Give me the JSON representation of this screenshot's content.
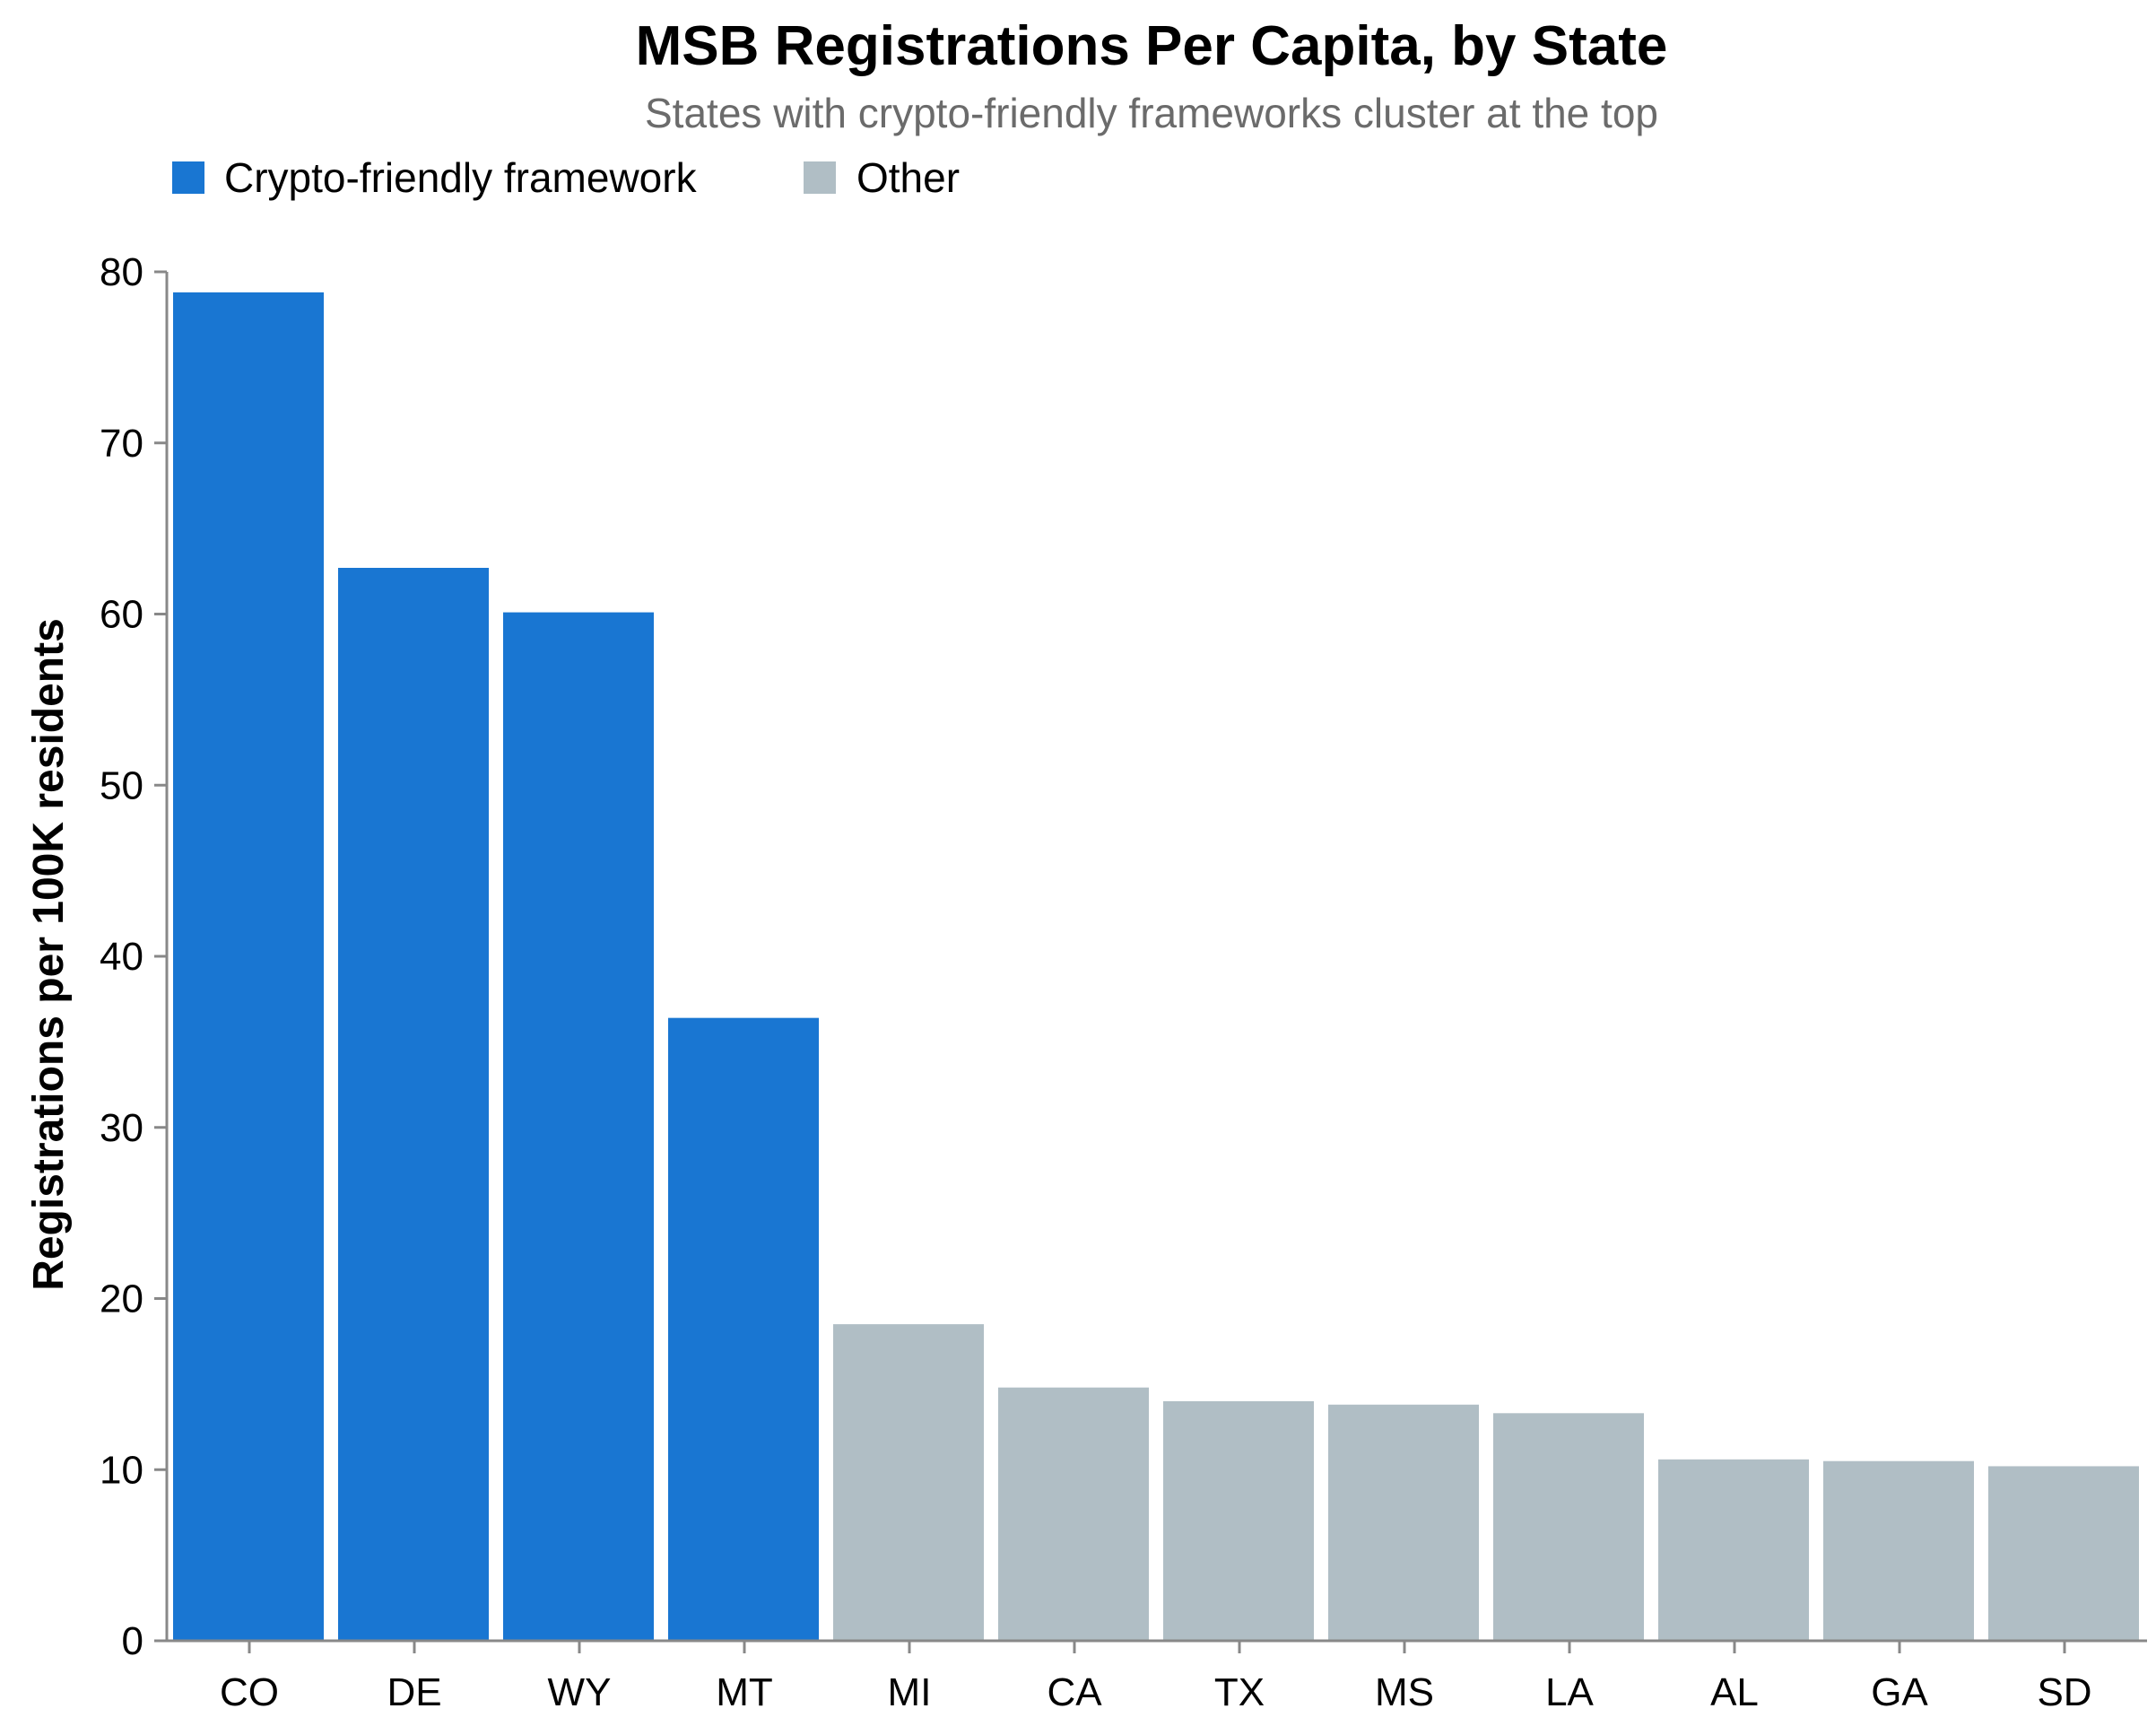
{
  "chart_data": {
    "type": "bar",
    "title": "MSB Registrations Per Capita, by State",
    "subtitle": "States with crypto-friendly frameworks cluster at the top",
    "ylabel": "Registrations per 100K residents",
    "xlabel": "",
    "ylim": [
      0,
      80
    ],
    "yticks": [
      "0",
      "10",
      "20",
      "30",
      "40",
      "50",
      "60",
      "70",
      "80"
    ],
    "grid": false,
    "legend_placement": "top-left",
    "legend": [
      {
        "label": "Crypto-friendly framework",
        "color": "#1976d2"
      },
      {
        "label": "Other",
        "color": "#b0bec5"
      }
    ],
    "categories": [
      "CO",
      "DE",
      "WY",
      "MT",
      "MI",
      "CA",
      "TX",
      "MS",
      "LA",
      "AL",
      "GA",
      "SD"
    ],
    "values": [
      78.8,
      62.7,
      60.1,
      36.4,
      18.5,
      14.8,
      14.0,
      13.8,
      13.3,
      10.6,
      10.5,
      10.2
    ],
    "groups": [
      "Crypto-friendly framework",
      "Crypto-friendly framework",
      "Crypto-friendly framework",
      "Crypto-friendly framework",
      "Other",
      "Other",
      "Other",
      "Other",
      "Other",
      "Other",
      "Other",
      "Other"
    ]
  }
}
